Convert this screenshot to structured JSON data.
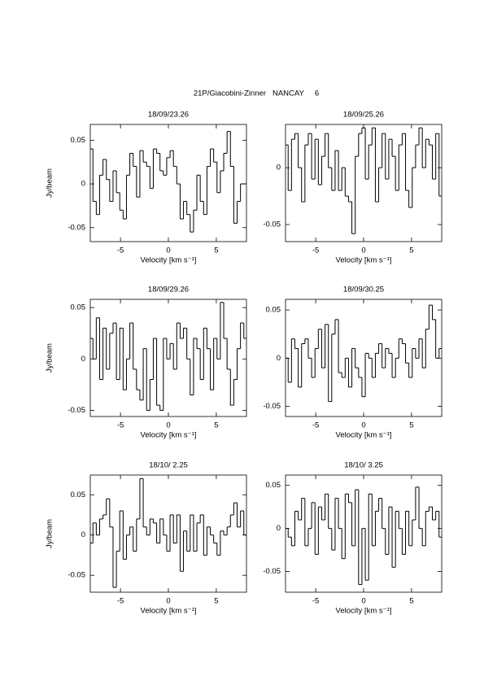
{
  "title": "21P/Giacobini-Zinner   NANCAY     6",
  "chart_data": [
    {
      "type": "line",
      "drawstyle": "steps-mid",
      "title": "18/09/23.26",
      "xlabel": "Velocity [km s⁻¹]",
      "ylabel": "Jy/beam",
      "xlim": [
        -8.15,
        8.15
      ],
      "xticks": [
        -5,
        0,
        5
      ],
      "ylim": [
        -0.066,
        0.068
      ],
      "yticks": [
        -0.05,
        0,
        0.05
      ],
      "x": [
        -8.05,
        -7.7,
        -7.35,
        -7.0,
        -6.65,
        -6.3,
        -5.95,
        -5.6,
        -5.25,
        -4.9,
        -4.55,
        -4.2,
        -3.85,
        -3.5,
        -3.15,
        -2.8,
        -2.45,
        -2.1,
        -1.75,
        -1.4,
        -1.05,
        -0.7,
        -0.35,
        0,
        0.35,
        0.7,
        1.05,
        1.4,
        1.75,
        2.1,
        2.45,
        2.8,
        3.15,
        3.5,
        3.85,
        4.2,
        4.55,
        4.9,
        5.25,
        5.6,
        5.95,
        6.3,
        6.65,
        7.0,
        7.35,
        7.7,
        8.05
      ],
      "series": [
        {
          "color": "#000000",
          "values": [
            0.04,
            -0.02,
            -0.035,
            0.01,
            0.028,
            0.005,
            -0.02,
            0.015,
            -0.01,
            -0.03,
            -0.04,
            0.01,
            0.035,
            0.02,
            -0.015,
            0.038,
            0.025,
            0.02,
            -0.005,
            0.04,
            0.035,
            0.015,
            0.01,
            0.03,
            0.038,
            0.02,
            0.0,
            -0.04,
            -0.02,
            -0.035,
            -0.055,
            -0.03,
            0.01,
            -0.02,
            -0.035,
            0.02,
            0.04,
            0.025,
            -0.01,
            0.015,
            0.035,
            0.06,
            0.02,
            -0.045,
            -0.02,
            0.0,
            0.0
          ]
        }
      ]
    },
    {
      "type": "line",
      "drawstyle": "steps-mid",
      "title": "18/09/25.26",
      "xlabel": "Velocity [km s⁻¹]",
      "xlim": [
        -8.15,
        8.15
      ],
      "xticks": [
        -5,
        0,
        5
      ],
      "ylim": [
        -0.065,
        0.038
      ],
      "yticks": [
        -0.05,
        0
      ],
      "x": [
        -8.05,
        -7.7,
        -7.35,
        -7.0,
        -6.65,
        -6.3,
        -5.95,
        -5.6,
        -5.25,
        -4.9,
        -4.55,
        -4.2,
        -3.85,
        -3.5,
        -3.15,
        -2.8,
        -2.45,
        -2.1,
        -1.75,
        -1.4,
        -1.05,
        -0.7,
        -0.35,
        0,
        0.35,
        0.7,
        1.05,
        1.4,
        1.75,
        2.1,
        2.45,
        2.8,
        3.15,
        3.5,
        3.85,
        4.2,
        4.55,
        4.9,
        5.25,
        5.6,
        5.95,
        6.3,
        6.65,
        7.0,
        7.35,
        7.7,
        8.05
      ],
      "series": [
        {
          "color": "#000000",
          "values": [
            0.02,
            -0.02,
            0.025,
            0.03,
            0.0,
            -0.03,
            0.02,
            0.03,
            -0.01,
            0.025,
            -0.015,
            0.01,
            0.03,
            0.0,
            -0.02,
            0.015,
            -0.02,
            0.0,
            -0.025,
            -0.03,
            -0.058,
            0.01,
            0.03,
            0.035,
            -0.01,
            0.02,
            0.035,
            -0.03,
            0.0,
            0.03,
            -0.01,
            0.025,
            0.01,
            -0.02,
            0.02,
            0.03,
            -0.02,
            -0.035,
            0.0,
            0.02,
            0.035,
            0.0,
            0.025,
            0.02,
            -0.01,
            0.03,
            -0.025
          ]
        }
      ]
    },
    {
      "type": "line",
      "drawstyle": "steps-mid",
      "title": "18/09/29.26",
      "xlabel": "Velocity [km s⁻¹]",
      "ylabel": "Jy/beam",
      "xlim": [
        -8.15,
        8.15
      ],
      "xticks": [
        -5,
        0,
        5
      ],
      "ylim": [
        -0.056,
        0.058
      ],
      "yticks": [
        -0.05,
        0,
        0.05
      ],
      "x": [
        -8.05,
        -7.7,
        -7.35,
        -7.0,
        -6.65,
        -6.3,
        -5.95,
        -5.6,
        -5.25,
        -4.9,
        -4.55,
        -4.2,
        -3.85,
        -3.5,
        -3.15,
        -2.8,
        -2.45,
        -2.1,
        -1.75,
        -1.4,
        -1.05,
        -0.7,
        -0.35,
        0,
        0.35,
        0.7,
        1.05,
        1.4,
        1.75,
        2.1,
        2.45,
        2.8,
        3.15,
        3.5,
        3.85,
        4.2,
        4.55,
        4.9,
        5.25,
        5.6,
        5.95,
        6.3,
        6.65,
        7.0,
        7.35,
        7.7,
        8.05
      ],
      "series": [
        {
          "color": "#000000",
          "values": [
            0.02,
            0.0,
            0.04,
            -0.02,
            0.03,
            -0.01,
            0.025,
            0.035,
            -0.02,
            0.03,
            -0.03,
            0.0,
            0.035,
            -0.01,
            -0.03,
            -0.04,
            0.01,
            -0.05,
            -0.02,
            0.02,
            -0.045,
            -0.05,
            0.02,
            0.0,
            0.015,
            -0.01,
            0.035,
            0.02,
            0.03,
            0.0,
            -0.035,
            0.02,
            0.01,
            -0.02,
            0.03,
            0.01,
            -0.03,
            0.02,
            0.0,
            0.055,
            0.02,
            -0.01,
            -0.045,
            -0.02,
            0.01,
            0.035,
            0.02
          ]
        }
      ]
    },
    {
      "type": "line",
      "drawstyle": "steps-mid",
      "title": "18/09/30.25",
      "xlabel": "Velocity [km s⁻¹]",
      "xlim": [
        -8.15,
        8.15
      ],
      "xticks": [
        -5,
        0,
        5
      ],
      "ylim": [
        -0.0605,
        0.061
      ],
      "yticks": [
        -0.05,
        0,
        0.05
      ],
      "x": [
        -8.05,
        -7.7,
        -7.35,
        -7.0,
        -6.65,
        -6.3,
        -5.95,
        -5.6,
        -5.25,
        -4.9,
        -4.55,
        -4.2,
        -3.85,
        -3.5,
        -3.15,
        -2.8,
        -2.45,
        -2.1,
        -1.75,
        -1.4,
        -1.05,
        -0.7,
        -0.35,
        0,
        0.35,
        0.7,
        1.05,
        1.4,
        1.75,
        2.1,
        2.45,
        2.8,
        3.15,
        3.5,
        3.85,
        4.2,
        4.55,
        4.9,
        5.25,
        5.6,
        5.95,
        6.3,
        6.65,
        7.0,
        7.35,
        7.7,
        8.05
      ],
      "series": [
        {
          "color": "#000000",
          "values": [
            0.0,
            -0.025,
            0.02,
            0.01,
            -0.03,
            0.015,
            0.02,
            0.0,
            -0.02,
            0.01,
            0.03,
            -0.01,
            0.035,
            -0.045,
            0.025,
            0.04,
            -0.015,
            -0.02,
            0.0,
            -0.03,
            0.01,
            -0.01,
            -0.02,
            -0.04,
            0.005,
            0.0,
            -0.02,
            0.005,
            0.015,
            -0.01,
            0.01,
            0.005,
            -0.02,
            0.0,
            0.02,
            0.015,
            -0.005,
            -0.02,
            0.01,
            0.0,
            0.02,
            -0.01,
            0.03,
            0.055,
            0.04,
            0.0,
            0.01
          ]
        }
      ]
    },
    {
      "type": "line",
      "drawstyle": "steps-mid",
      "title": "18/10/ 2.25",
      "xlabel": "Velocity [km s⁻¹]",
      "ylabel": "Jy/beam",
      "xlim": [
        -8.15,
        8.15
      ],
      "xticks": [
        -5,
        0,
        5
      ],
      "ylim": [
        -0.071,
        0.0745
      ],
      "yticks": [
        -0.05,
        0,
        0.05
      ],
      "x": [
        -8.05,
        -7.7,
        -7.35,
        -7.0,
        -6.65,
        -6.3,
        -5.95,
        -5.6,
        -5.25,
        -4.9,
        -4.55,
        -4.2,
        -3.85,
        -3.5,
        -3.15,
        -2.8,
        -2.45,
        -2.1,
        -1.75,
        -1.4,
        -1.05,
        -0.7,
        -0.35,
        0,
        0.35,
        0.7,
        1.05,
        1.4,
        1.75,
        2.1,
        2.45,
        2.8,
        3.15,
        3.5,
        3.85,
        4.2,
        4.55,
        4.9,
        5.25,
        5.6,
        5.95,
        6.3,
        6.65,
        7.0,
        7.35,
        7.7,
        8.05
      ],
      "series": [
        {
          "color": "#000000",
          "values": [
            -0.01,
            0.015,
            0.0,
            0.02,
            0.025,
            0.045,
            0.01,
            -0.065,
            -0.02,
            0.03,
            -0.03,
            0.0,
            0.01,
            -0.02,
            0.02,
            0.07,
            0.01,
            0.0,
            0.02,
            0.015,
            -0.01,
            0.02,
            0.0,
            -0.02,
            0.025,
            -0.01,
            0.025,
            -0.045,
            0.005,
            -0.02,
            0.025,
            -0.02,
            0.015,
            0.025,
            -0.025,
            0.01,
            0.0,
            -0.01,
            -0.025,
            0.005,
            0.0,
            0.01,
            0.025,
            0.04,
            0.01,
            0.03,
            0.0
          ]
        }
      ]
    },
    {
      "type": "line",
      "drawstyle": "steps-mid",
      "title": "18/10/ 3.25",
      "xlabel": "Velocity [km s⁻¹]",
      "xlim": [
        -8.15,
        8.15
      ],
      "xticks": [
        -5,
        0,
        5
      ],
      "ylim": [
        -0.074,
        0.062
      ],
      "yticks": [
        -0.05,
        0,
        0.05
      ],
      "x": [
        -8.05,
        -7.7,
        -7.35,
        -7.0,
        -6.65,
        -6.3,
        -5.95,
        -5.6,
        -5.25,
        -4.9,
        -4.55,
        -4.2,
        -3.85,
        -3.5,
        -3.15,
        -2.8,
        -2.45,
        -2.1,
        -1.75,
        -1.4,
        -1.05,
        -0.7,
        -0.35,
        0,
        0.35,
        0.7,
        1.05,
        1.4,
        1.75,
        2.1,
        2.45,
        2.8,
        3.15,
        3.5,
        3.85,
        4.2,
        4.55,
        4.9,
        5.25,
        5.6,
        5.95,
        6.3,
        6.65,
        7.0,
        7.35,
        7.7,
        8.05
      ],
      "series": [
        {
          "color": "#000000",
          "values": [
            0.0,
            -0.01,
            -0.02,
            0.02,
            0.01,
            0.035,
            -0.02,
            0.0,
            0.03,
            -0.03,
            0.025,
            0.01,
            0.04,
            0.0,
            -0.025,
            0.035,
            0.0,
            -0.035,
            0.04,
            0.03,
            -0.02,
            0.045,
            -0.065,
            0.0,
            -0.06,
            0.04,
            -0.02,
            0.02,
            0.035,
            0.0,
            -0.03,
            0.025,
            -0.045,
            0.02,
            0.0,
            -0.03,
            0.02,
            -0.02,
            0.01,
            0.048,
            0.0,
            -0.02,
            0.02,
            0.025,
            0.01,
            0.02,
            -0.01
          ]
        }
      ]
    }
  ]
}
